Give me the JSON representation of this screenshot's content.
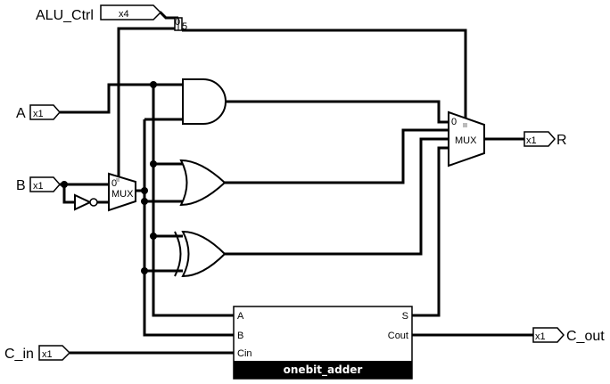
{
  "pins": {
    "alu_ctrl": {
      "label": "ALU_Ctrl",
      "width": "x4"
    },
    "a": {
      "label": "A",
      "width": "x1"
    },
    "b": {
      "label": "B",
      "width": "x1"
    },
    "c_in": {
      "label": "C_in",
      "width": "x1"
    },
    "r": {
      "label": "R",
      "width": "x1"
    },
    "c_out": {
      "label": "C_out",
      "width": "x1"
    }
  },
  "splitter": {
    "bit_labels": [
      "0",
      "5"
    ]
  },
  "mux_b": {
    "label": "MUX",
    "sel0": "0"
  },
  "mux_r": {
    "label": "MUX",
    "sel0": "0"
  },
  "adder": {
    "title": "onebit_adder",
    "port_a": "A",
    "port_b": "B",
    "port_cin": "Cin",
    "port_s": "S",
    "port_cout": "Cout"
  }
}
